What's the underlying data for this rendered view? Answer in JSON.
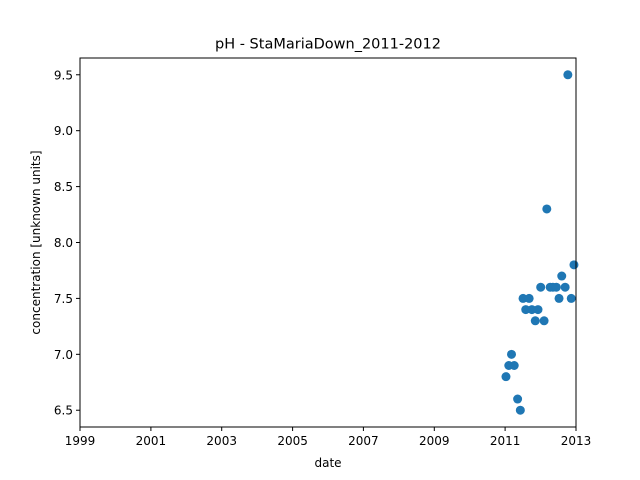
{
  "chart_data": {
    "type": "scatter",
    "title": "pH - StaMariaDown_2011-2012",
    "xlabel": "date",
    "ylabel": "concentration [unknown units]",
    "x_scale": "date",
    "xlim": [
      "1999-01-01",
      "2013-01-01"
    ],
    "ylim": [
      6.35,
      9.65
    ],
    "xticks": [
      {
        "value": "1999-01-01",
        "label": "1999"
      },
      {
        "value": "2001-01-01",
        "label": "2001"
      },
      {
        "value": "2003-01-01",
        "label": "2003"
      },
      {
        "value": "2005-01-01",
        "label": "2005"
      },
      {
        "value": "2007-01-01",
        "label": "2007"
      },
      {
        "value": "2009-01-01",
        "label": "2009"
      },
      {
        "value": "2011-01-01",
        "label": "2011"
      },
      {
        "value": "2013-01-01",
        "label": "2013"
      }
    ],
    "yticks": [
      {
        "value": 6.5,
        "label": "6.5"
      },
      {
        "value": 7.0,
        "label": "7.0"
      },
      {
        "value": 7.5,
        "label": "7.5"
      },
      {
        "value": 8.0,
        "label": "8.0"
      },
      {
        "value": 8.5,
        "label": "8.5"
      },
      {
        "value": 9.0,
        "label": "9.0"
      },
      {
        "value": 9.5,
        "label": "9.5"
      }
    ],
    "grid": false,
    "color": "#1f77b4",
    "points": [
      {
        "x": "2011-01-10",
        "y": 6.8
      },
      {
        "x": "2011-02-08",
        "y": 6.9
      },
      {
        "x": "2011-03-08",
        "y": 7.0
      },
      {
        "x": "2011-04-05",
        "y": 6.9
      },
      {
        "x": "2011-05-10",
        "y": 6.6
      },
      {
        "x": "2011-06-07",
        "y": 6.5
      },
      {
        "x": "2011-07-05",
        "y": 7.5
      },
      {
        "x": "2011-08-02",
        "y": 7.4
      },
      {
        "x": "2011-09-06",
        "y": 7.5
      },
      {
        "x": "2011-10-04",
        "y": 7.4
      },
      {
        "x": "2011-11-08",
        "y": 7.3
      },
      {
        "x": "2011-12-06",
        "y": 7.4
      },
      {
        "x": "2012-01-03",
        "y": 7.6
      },
      {
        "x": "2012-02-07",
        "y": 7.3
      },
      {
        "x": "2012-03-06",
        "y": 8.3
      },
      {
        "x": "2012-04-10",
        "y": 7.6
      },
      {
        "x": "2012-05-08",
        "y": 7.6
      },
      {
        "x": "2012-06-12",
        "y": 7.6
      },
      {
        "x": "2012-07-10",
        "y": 7.5
      },
      {
        "x": "2012-08-07",
        "y": 7.7
      },
      {
        "x": "2012-09-11",
        "y": 7.6
      },
      {
        "x": "2012-10-09",
        "y": 9.5
      },
      {
        "x": "2012-11-13",
        "y": 7.5
      },
      {
        "x": "2012-12-11",
        "y": 7.8
      }
    ]
  }
}
